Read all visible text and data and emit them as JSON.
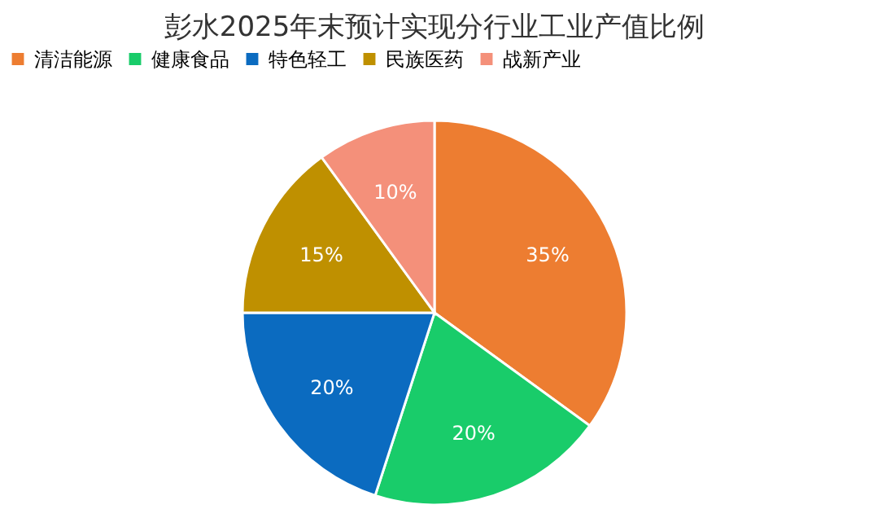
{
  "chart_data": {
    "type": "pie",
    "title": "彭水2025年末预计实现分行业工业产值比例",
    "categories": [
      "清洁能源",
      "健康食品",
      "特色轻工",
      "民族医药",
      "战新产业"
    ],
    "values": [
      35,
      20,
      20,
      15,
      10
    ],
    "colors": [
      "#ed7d31",
      "#19cc6a",
      "#0b6bc0",
      "#bf9000",
      "#f4907a"
    ],
    "value_labels": [
      "35%",
      "20%",
      "20%",
      "15%",
      "10%"
    ],
    "legend": "top"
  }
}
